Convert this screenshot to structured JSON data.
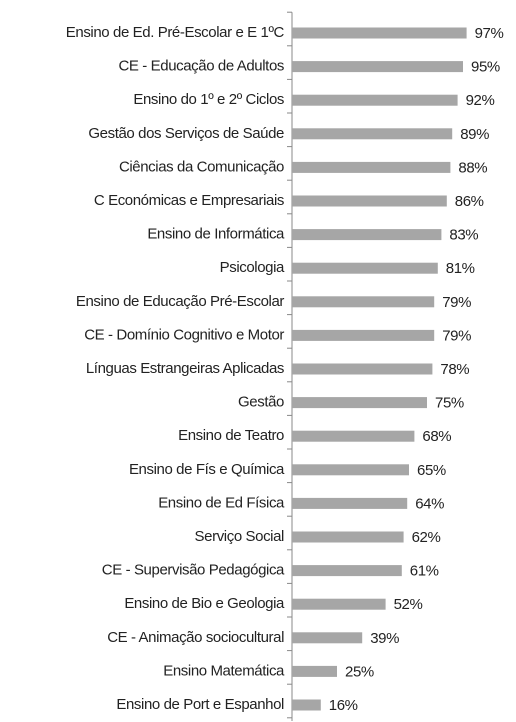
{
  "chart_data": {
    "type": "bar",
    "orientation": "horizontal",
    "categories": [
      "Ensino de Ed. Pré-Escolar e E 1ºC",
      "CE - Educação de Adultos",
      "Ensino do 1º e 2º Ciclos",
      "Gestão dos Serviços de Saúde",
      "Ciências da Comunicação",
      "C Económicas e Empresariais",
      "Ensino de Informática",
      "Psicologia",
      "Ensino de Educação Pré-Escolar",
      "CE - Domínio Cognitivo e Motor",
      "Línguas Estrangeiras Aplicadas",
      "Gestão",
      "Ensino de Teatro",
      "Ensino de Fís e Química",
      "Ensino de Ed Física",
      "Serviço Social",
      "CE - Supervisão Pedagógica",
      "Ensino de Bio e Geologia",
      "CE - Animação sociocultural",
      "Ensino Matemática",
      "Ensino de Port e Espanhol"
    ],
    "values": [
      97,
      95,
      92,
      89,
      88,
      86,
      83,
      81,
      79,
      79,
      78,
      75,
      68,
      65,
      64,
      62,
      61,
      52,
      39,
      25,
      16
    ],
    "value_labels": [
      "97%",
      "95%",
      "92%",
      "89%",
      "88%",
      "86%",
      "83%",
      "81%",
      "79%",
      "79%",
      "78%",
      "75%",
      "68%",
      "65%",
      "64%",
      "62%",
      "61%",
      "52%",
      "39%",
      "25%",
      "16%"
    ],
    "color": "#a6a6a6",
    "xlim": [
      0,
      100
    ]
  }
}
